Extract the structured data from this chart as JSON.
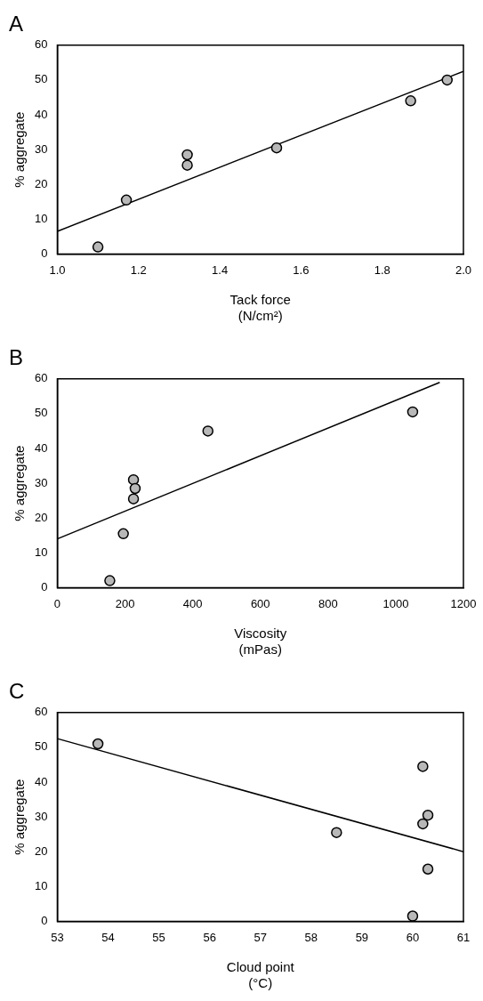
{
  "chart_data": [
    {
      "type": "scatter",
      "title": "A",
      "xlabel": "Tack force\n(N/cm²)",
      "ylabel": "% aggregate",
      "xlim": [
        1.0,
        2.0
      ],
      "xticks": [
        {
          "value": 1.0,
          "label": "1.0"
        },
        1.2,
        1.4,
        1.6,
        1.8,
        {
          "value": 2.0,
          "label": "2.0"
        }
      ],
      "ylim": [
        0,
        60
      ],
      "yticks": [
        0,
        10,
        20,
        30,
        40,
        50,
        60
      ],
      "grid": false,
      "legend": false,
      "series": [
        {
          "marker": "circle",
          "color": "#b8b8b8",
          "x": [
            1.1,
            1.17,
            1.32,
            1.32,
            1.54,
            1.87,
            1.96
          ],
          "values": [
            2,
            15.5,
            28.5,
            25.5,
            30.5,
            44,
            50
          ]
        },
        {
          "type": "line",
          "marker": "none",
          "color": "#000000",
          "x": [
            1.0,
            2.0
          ],
          "values": [
            6.5,
            52.5
          ]
        }
      ]
    },
    {
      "type": "scatter",
      "title": "B",
      "xlabel": "Viscosity\n(mPas)",
      "ylabel": "% aggregate",
      "xlim": [
        0,
        1200
      ],
      "xticks": [
        0,
        200,
        400,
        600,
        800,
        1000,
        1200
      ],
      "ylim": [
        0,
        60
      ],
      "yticks": [
        0,
        10,
        20,
        30,
        40,
        50,
        60
      ],
      "grid": false,
      "legend": false,
      "series": [
        {
          "marker": "circle",
          "color": "#b8b8b8",
          "x": [
            155,
            195,
            225,
            230,
            225,
            445,
            1050
          ],
          "values": [
            2,
            15.5,
            31,
            28.5,
            25.5,
            45,
            50.5
          ]
        },
        {
          "type": "line",
          "marker": "none",
          "color": "#000000",
          "x": [
            0,
            1130
          ],
          "values": [
            14,
            59
          ]
        }
      ]
    },
    {
      "type": "scatter",
      "title": "C",
      "xlabel": "Cloud point\n(°C)",
      "ylabel": "% aggregate",
      "xlim": [
        53,
        61
      ],
      "xticks": [
        53,
        54,
        55,
        56,
        57,
        58,
        59,
        60,
        61
      ],
      "ylim": [
        0,
        60
      ],
      "yticks": [
        0,
        10,
        20,
        30,
        40,
        50,
        60
      ],
      "grid": false,
      "legend": false,
      "series": [
        {
          "marker": "circle",
          "color": "#b8b8b8",
          "x": [
            53.8,
            58.5,
            60.0,
            60.2,
            60.2,
            60.3,
            60.3
          ],
          "values": [
            51,
            25.5,
            1.5,
            44.5,
            28,
            30.5,
            15
          ]
        },
        {
          "type": "line",
          "marker": "none",
          "color": "#000000",
          "x": [
            53,
            61
          ],
          "values": [
            52.5,
            20
          ]
        }
      ]
    }
  ]
}
